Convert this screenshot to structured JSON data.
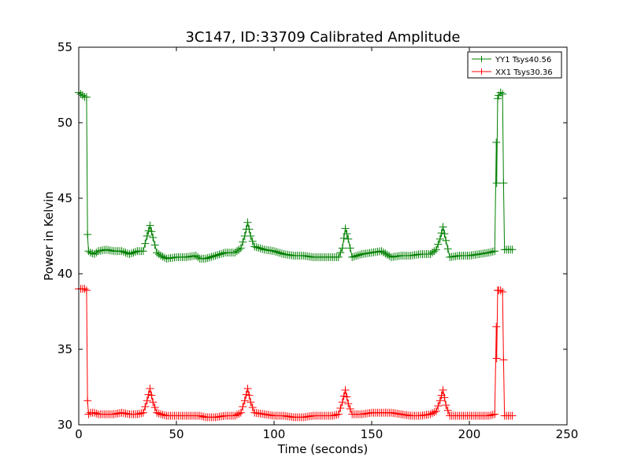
{
  "chart_data": {
    "type": "line",
    "title": "3C147, ID:33709 Calibrated Amplitude",
    "xlabel": "Time (seconds)",
    "ylabel": "Power in Kelvin",
    "xlim": [
      0,
      250
    ],
    "ylim": [
      30,
      55
    ],
    "xticks": [
      0,
      50,
      100,
      150,
      200,
      250
    ],
    "yticks": [
      30,
      35,
      40,
      45,
      50,
      55
    ],
    "xtick_labels": [
      "0",
      "50",
      "100",
      "150",
      "200",
      "250"
    ],
    "ytick_labels": [
      "30",
      "35",
      "40",
      "45",
      "50",
      "55"
    ],
    "grid": false,
    "legend_position": "top-right",
    "marker": "+",
    "series": [
      {
        "name": "YY1 Tsys40.56",
        "color": "#008000",
        "x": [
          0,
          1,
          2,
          3,
          4,
          4.5,
          5,
          6,
          8,
          10,
          14,
          18,
          22,
          26,
          30,
          33,
          35,
          36.5,
          38,
          40,
          42,
          45,
          50,
          55,
          60,
          62,
          65,
          70,
          75,
          80,
          83,
          85,
          86.5,
          88,
          90,
          95,
          100,
          105,
          110,
          115,
          120,
          125,
          130,
          133,
          135,
          136.5,
          138,
          140,
          145,
          150,
          155,
          160,
          165,
          170,
          175,
          180,
          183,
          185,
          186.5,
          188,
          190,
          195,
          200,
          205,
          210,
          213,
          213.8,
          214,
          214.5,
          215,
          216,
          217,
          217.5,
          218,
          220,
          222
        ],
        "values": [
          52.0,
          51.9,
          51.8,
          51.7,
          51.7,
          42.6,
          41.5,
          41.4,
          41.3,
          41.5,
          41.6,
          41.5,
          41.5,
          41.3,
          41.5,
          41.5,
          42.5,
          43.2,
          42.4,
          41.4,
          41.2,
          41.0,
          41.1,
          41.1,
          41.2,
          41.0,
          41.0,
          41.2,
          41.4,
          41.4,
          41.7,
          42.5,
          43.4,
          42.5,
          41.8,
          41.6,
          41.5,
          41.3,
          41.2,
          41.2,
          41.1,
          41.1,
          41.1,
          41.1,
          41.7,
          43.0,
          42.3,
          41.1,
          41.3,
          41.4,
          41.5,
          41.1,
          41.2,
          41.2,
          41.3,
          41.3,
          41.6,
          42.3,
          43.1,
          42.2,
          41.1,
          41.2,
          41.2,
          41.3,
          41.4,
          41.5,
          48.7,
          46.0,
          51.6,
          51.8,
          52.0,
          51.9,
          46.0,
          41.6,
          41.6,
          41.6
        ]
      },
      {
        "name": "XX1 Tsys30.36",
        "color": "#ff0000",
        "x": [
          0,
          1,
          2,
          3,
          4,
          4.5,
          5,
          6,
          8,
          10,
          14,
          18,
          22,
          26,
          30,
          33,
          35,
          36.5,
          38,
          40,
          42,
          45,
          50,
          55,
          60,
          62,
          65,
          70,
          75,
          80,
          83,
          85,
          86.5,
          88,
          90,
          95,
          100,
          105,
          110,
          115,
          120,
          125,
          130,
          133,
          135,
          136.5,
          138,
          140,
          145,
          150,
          155,
          160,
          165,
          170,
          175,
          180,
          183,
          185,
          186.5,
          188,
          190,
          195,
          200,
          205,
          210,
          213,
          213.8,
          214,
          214.5,
          215,
          216,
          217,
          217.5,
          218,
          220,
          222
        ],
        "values": [
          39.0,
          39.0,
          39.0,
          39.0,
          38.9,
          31.6,
          30.7,
          30.8,
          30.8,
          30.7,
          30.7,
          30.7,
          30.8,
          30.7,
          30.7,
          30.8,
          31.6,
          32.4,
          31.5,
          30.8,
          30.7,
          30.6,
          30.6,
          30.6,
          30.6,
          30.6,
          30.5,
          30.5,
          30.6,
          30.6,
          30.8,
          31.6,
          32.4,
          31.5,
          30.8,
          30.7,
          30.6,
          30.6,
          30.5,
          30.5,
          30.6,
          30.6,
          30.6,
          30.7,
          31.5,
          32.3,
          31.4,
          30.7,
          30.7,
          30.8,
          30.8,
          30.8,
          30.7,
          30.6,
          30.6,
          30.7,
          30.9,
          31.6,
          32.3,
          31.3,
          30.6,
          30.6,
          30.6,
          30.6,
          30.6,
          30.7,
          36.5,
          34.4,
          38.9,
          38.9,
          38.9,
          38.8,
          34.3,
          30.6,
          30.6,
          30.6
        ]
      }
    ]
  }
}
